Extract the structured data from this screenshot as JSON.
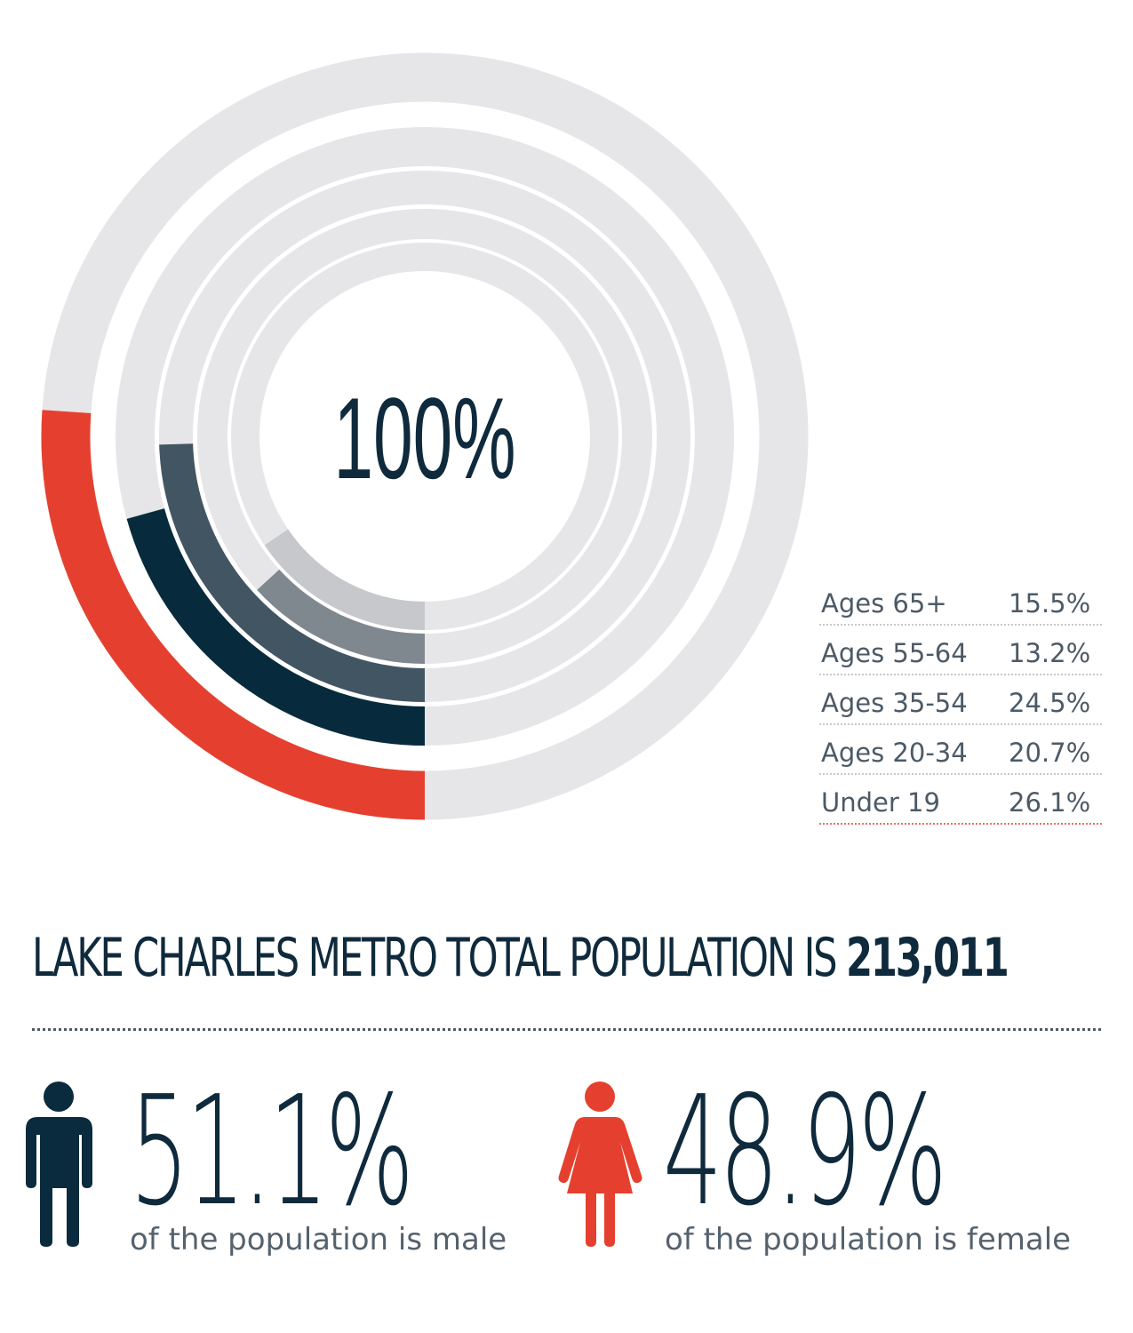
{
  "chart_data": {
    "type": "radial-bar",
    "center_label": "100%",
    "categories": [
      "Ages 65+",
      "Ages 55-64",
      "Ages 35-54",
      "Ages 20-34",
      "Under 19"
    ],
    "values": [
      15.5,
      13.2,
      24.5,
      20.7,
      26.1
    ],
    "value_labels": [
      "15.5%",
      "13.2%",
      "24.5%",
      "20.7%",
      "26.1%"
    ],
    "colors": [
      "#c7c8cb",
      "#7f878f",
      "#425563",
      "#072b3d",
      "#e5402f"
    ],
    "track_color": "#e6e6e8",
    "legend_placement": "bottom-right"
  },
  "headline": {
    "text": "LAKE CHARLES METRO TOTAL POPULATION IS",
    "number": "213,011"
  },
  "stats": {
    "male": {
      "percent": "51.1%",
      "caption": "of the population is male",
      "icon": "male-person-icon",
      "color": "#0a2b3d"
    },
    "female": {
      "percent": "48.9%",
      "caption": "of the population is female",
      "icon": "female-person-icon",
      "color": "#e5402f"
    }
  }
}
